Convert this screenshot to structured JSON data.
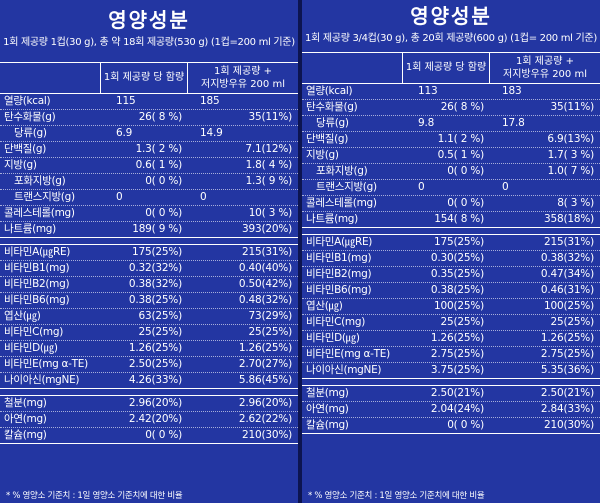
{
  "left": {
    "title": "영양성분",
    "subtitle": "1회 제공량 1컵(30 g), 총 약 18회 제공량(530 g) (1컵=200 ml 기준)",
    "col1": "1회 제공량 당 함량",
    "col2": "1회 제공량 +\n저지방우유 200 ml",
    "rows": [
      {
        "name": "열량(kcal)",
        "a": "115",
        "b": "185",
        "indent": false,
        "center": true
      },
      {
        "name": "탄수화물(g)",
        "a": "26( 8 %)",
        "b": "35(11%)",
        "indent": false
      },
      {
        "name": "당류(g)",
        "a": "6.9",
        "b": "14.9",
        "indent": true,
        "center": true
      },
      {
        "name": "단백질(g)",
        "a": "1.3( 2 %)",
        "b": "7.1(12%)",
        "indent": false
      },
      {
        "name": "지방(g)",
        "a": "0.6( 1 %)",
        "b": "1.8( 4 %)",
        "indent": false
      },
      {
        "name": "포화지방(g)",
        "a": "0( 0 %)",
        "b": "1.3( 9 %)",
        "indent": true
      },
      {
        "name": "트랜스지방(g)",
        "a": "0",
        "b": "0",
        "indent": true,
        "center": true
      },
      {
        "name": "콜레스테롤(mg)",
        "a": "0( 0 %)",
        "b": "10( 3 %)",
        "indent": false
      },
      {
        "name": "나트륨(mg)",
        "a": "189( 9 %)",
        "b": "393(20%)",
        "indent": false
      }
    ],
    "vitamins": [
      {
        "name": "비타민A(㎍RE)",
        "a": "175(25%)",
        "b": "215(31%)"
      },
      {
        "name": "비타민B1(mg)",
        "a": "0.32(32%)",
        "b": "0.40(40%)"
      },
      {
        "name": "비타민B2(mg)",
        "a": "0.38(32%)",
        "b": "0.50(42%)"
      },
      {
        "name": "비타민B6(mg)",
        "a": "0.38(25%)",
        "b": "0.48(32%)"
      },
      {
        "name": "엽산(㎍)",
        "a": "63(25%)",
        "b": "73(29%)"
      },
      {
        "name": "비타민C(mg)",
        "a": "25(25%)",
        "b": "25(25%)"
      },
      {
        "name": "비타민D(㎍)",
        "a": "1.26(25%)",
        "b": "1.26(25%)"
      },
      {
        "name": "비타민E(mg α-TE)",
        "a": "2.50(25%)",
        "b": "2.70(27%)"
      },
      {
        "name": "나이아신(mgNE)",
        "a": "4.26(33%)",
        "b": "5.86(45%)"
      }
    ],
    "minerals": [
      {
        "name": "철분(mg)",
        "a": "2.96(20%)",
        "b": "2.96(20%)"
      },
      {
        "name": "아연(mg)",
        "a": "2.42(20%)",
        "b": "2.62(22%)"
      },
      {
        "name": "칼슘(mg)",
        "a": "0( 0 %)",
        "b": "210(30%)"
      }
    ],
    "footnote": "* % 영양소 기준치 : 1일 영양소 기준치에 대한 비율"
  },
  "right": {
    "title": "영양성분",
    "subtitle": "1회 제공량 3/4컵(30 g), 총 20회 제공량(600 g) (1컵= 200 ml 기준)",
    "col1": "1회 제공량 당 함량",
    "col2": "1회 제공량 +\n저지방우유 200 ml",
    "rows": [
      {
        "name": "열량(kcal)",
        "a": "113",
        "b": "183",
        "indent": false,
        "center": true
      },
      {
        "name": "탄수화물(g)",
        "a": "26( 8 %)",
        "b": "35(11%)",
        "indent": false
      },
      {
        "name": "당류(g)",
        "a": "9.8",
        "b": "17.8",
        "indent": true,
        "center": true
      },
      {
        "name": "단백질(g)",
        "a": "1.1( 2 %)",
        "b": "6.9(13%)",
        "indent": false
      },
      {
        "name": "지방(g)",
        "a": "0.5( 1 %)",
        "b": "1.7( 3 %)",
        "indent": false
      },
      {
        "name": "포화지방(g)",
        "a": "0( 0 %)",
        "b": "1.0( 7 %)",
        "indent": true
      },
      {
        "name": "트랜스지방(g)",
        "a": "0",
        "b": "0",
        "indent": true,
        "center": true
      },
      {
        "name": "콜레스테롤(mg)",
        "a": "0( 0 %)",
        "b": "8( 3 %)",
        "indent": false
      },
      {
        "name": "나트륨(mg)",
        "a": "154( 8 %)",
        "b": "358(18%)",
        "indent": false
      }
    ],
    "vitamins": [
      {
        "name": "비타민A(㎍RE)",
        "a": "175(25%)",
        "b": "215(31%)"
      },
      {
        "name": "비타민B1(mg)",
        "a": "0.30(25%)",
        "b": "0.38(32%)"
      },
      {
        "name": "비타민B2(mg)",
        "a": "0.35(25%)",
        "b": "0.47(34%)"
      },
      {
        "name": "비타민B6(mg)",
        "a": "0.38(25%)",
        "b": "0.46(31%)"
      },
      {
        "name": "엽산(㎍)",
        "a": "100(25%)",
        "b": "100(25%)"
      },
      {
        "name": "비타민C(mg)",
        "a": "25(25%)",
        "b": "25(25%)"
      },
      {
        "name": "비타민D(㎍)",
        "a": "1.26(25%)",
        "b": "1.26(25%)"
      },
      {
        "name": "비타민E(mg α-TE)",
        "a": "2.75(25%)",
        "b": "2.75(25%)"
      },
      {
        "name": "나이아신(mgNE)",
        "a": "3.75(25%)",
        "b": "5.35(36%)"
      }
    ],
    "minerals": [
      {
        "name": "철분(mg)",
        "a": "2.50(21%)",
        "b": "2.50(21%)"
      },
      {
        "name": "아연(mg)",
        "a": "2.04(24%)",
        "b": "2.84(33%)"
      },
      {
        "name": "칼슘(mg)",
        "a": "0( 0 %)",
        "b": "210(30%)"
      }
    ],
    "footnote": "* % 영양소 기준치 : 1일 영양소 기준치에 대한 비율"
  }
}
